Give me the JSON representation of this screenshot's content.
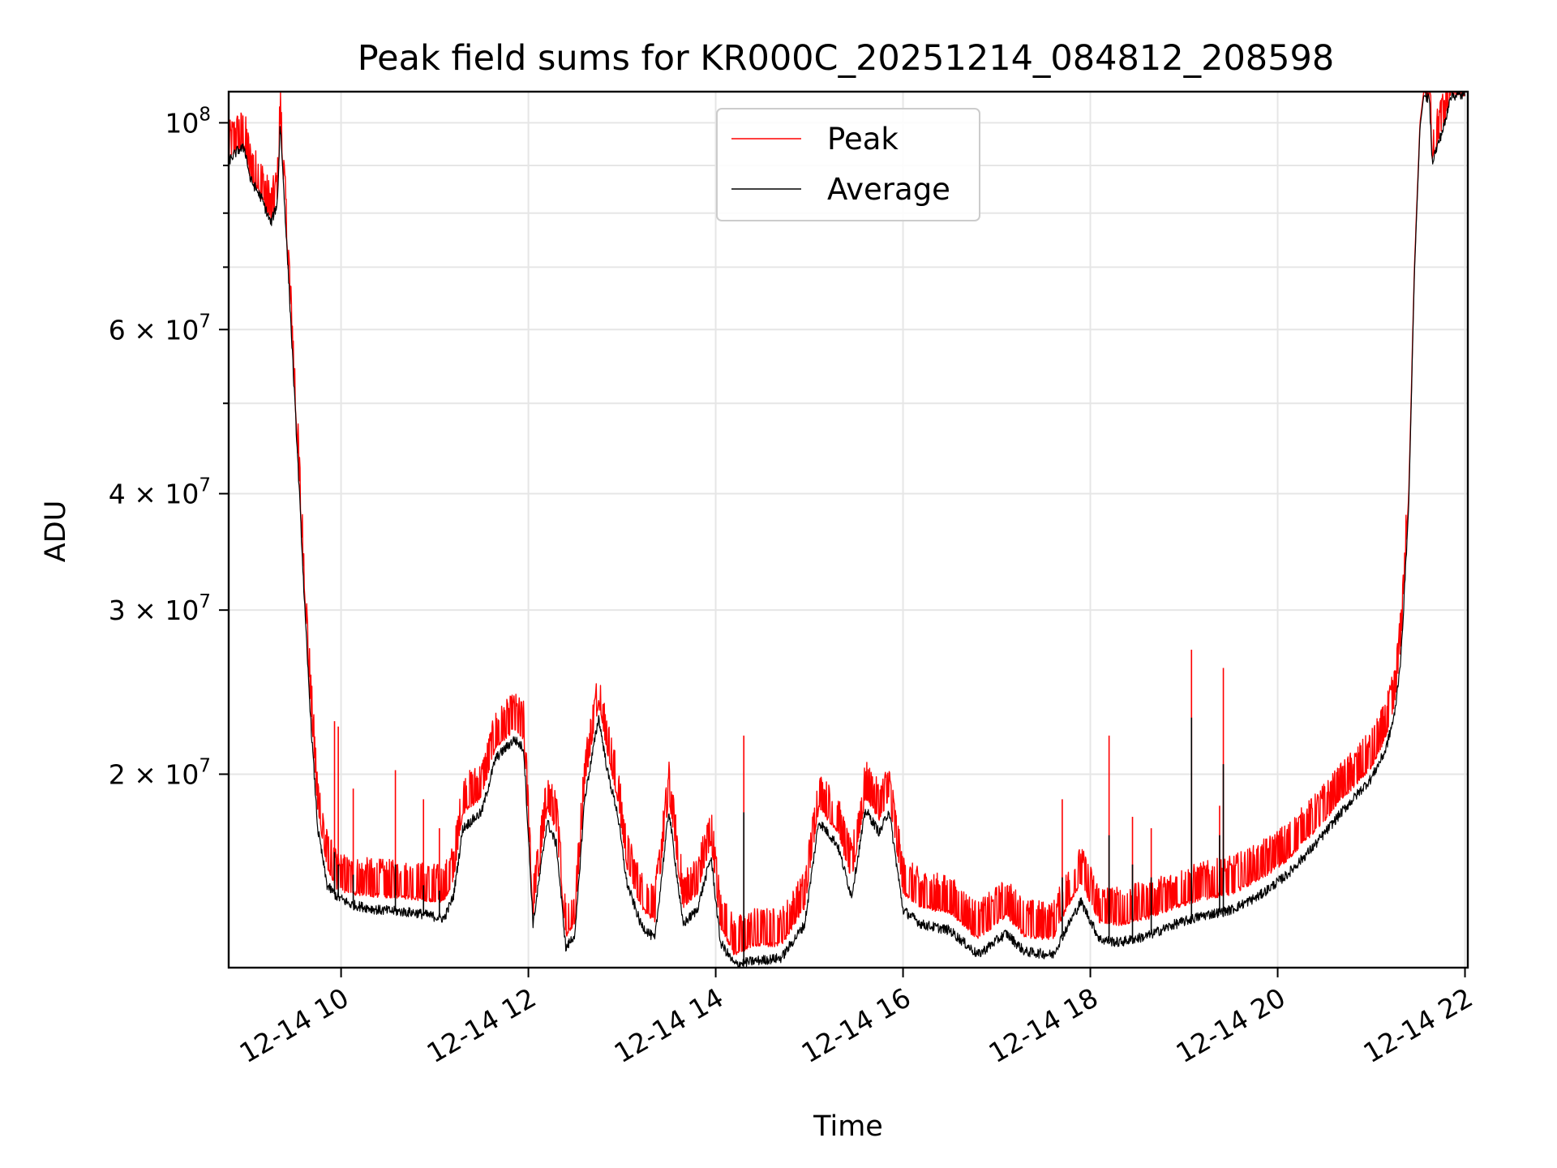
{
  "chart_data": {
    "type": "line",
    "title": "Peak field sums for KR000C_20251214_084812_208598",
    "xlabel": "Time",
    "ylabel": "ADU",
    "y_scale": "log",
    "x_unit": "hours on 2025-12-14",
    "xlim": [
      8.8,
      22.03
    ],
    "ylim": [
      12400000,
      108000000
    ],
    "grid": true,
    "legend_position": "upper center",
    "x_ticks": [
      {
        "value": 10,
        "label": "12-14 10"
      },
      {
        "value": 12,
        "label": "12-14 12"
      },
      {
        "value": 14,
        "label": "12-14 14"
      },
      {
        "value": 16,
        "label": "12-14 16"
      },
      {
        "value": 18,
        "label": "12-14 18"
      },
      {
        "value": 20,
        "label": "12-14 20"
      },
      {
        "value": 22,
        "label": "12-14 22"
      }
    ],
    "y_major_ticks": [
      {
        "value": 100000000,
        "mantissa": "",
        "base": "10",
        "exp": "8"
      },
      {
        "value": 60000000,
        "mantissa": "6 × ",
        "base": "10",
        "exp": "7"
      },
      {
        "value": 40000000,
        "mantissa": "4 × ",
        "base": "10",
        "exp": "7"
      },
      {
        "value": 30000000,
        "mantissa": "3 × ",
        "base": "10",
        "exp": "7"
      },
      {
        "value": 20000000,
        "mantissa": "2 × ",
        "base": "10",
        "exp": "7"
      }
    ],
    "y_minor_ticks": [
      90000000,
      80000000,
      70000000,
      50000000
    ],
    "series": [
      {
        "name": "Peak",
        "color": "#ff0000",
        "points": [
          [
            8.8,
            92000000
          ],
          [
            8.9,
            94500000
          ],
          [
            8.97,
            94800000
          ],
          [
            9.03,
            88000000
          ],
          [
            9.15,
            84000000
          ],
          [
            9.25,
            79000000
          ],
          [
            9.32,
            83000000
          ],
          [
            9.35,
            101500000
          ],
          [
            9.38,
            89000000
          ],
          [
            9.45,
            66000000
          ],
          [
            9.55,
            42000000
          ],
          [
            9.62,
            30000000
          ],
          [
            9.68,
            23500000
          ],
          [
            9.75,
            18500000
          ],
          [
            9.85,
            16000000
          ],
          [
            9.95,
            15200000
          ],
          [
            10.1,
            15000000
          ],
          [
            10.4,
            14900000
          ],
          [
            10.8,
            14800000
          ],
          [
            11.1,
            14700000
          ],
          [
            11.2,
            15500000
          ],
          [
            11.3,
            18300000
          ],
          [
            11.5,
            19000000
          ],
          [
            11.65,
            21500000
          ],
          [
            11.85,
            22500000
          ],
          [
            11.95,
            22000000
          ],
          [
            12.05,
            14200000
          ],
          [
            12.2,
            18500000
          ],
          [
            12.3,
            17500000
          ],
          [
            12.4,
            13500000
          ],
          [
            12.5,
            14000000
          ],
          [
            12.6,
            19500000
          ],
          [
            12.75,
            24000000
          ],
          [
            12.85,
            21000000
          ],
          [
            12.95,
            19000000
          ],
          [
            13.05,
            16000000
          ],
          [
            13.2,
            14500000
          ],
          [
            13.35,
            14000000
          ],
          [
            13.5,
            19000000
          ],
          [
            13.65,
            14500000
          ],
          [
            13.8,
            15000000
          ],
          [
            13.95,
            17000000
          ],
          [
            14.05,
            13800000
          ],
          [
            14.2,
            12900000
          ],
          [
            14.4,
            13200000
          ],
          [
            14.7,
            13200000
          ],
          [
            14.95,
            14500000
          ],
          [
            15.1,
            18500000
          ],
          [
            15.3,
            17500000
          ],
          [
            15.45,
            15500000
          ],
          [
            15.6,
            19000000
          ],
          [
            15.75,
            18000000
          ],
          [
            15.85,
            19000000
          ],
          [
            16.0,
            15000000
          ],
          [
            16.2,
            14500000
          ],
          [
            16.5,
            14300000
          ],
          [
            16.8,
            13400000
          ],
          [
            17.1,
            14200000
          ],
          [
            17.3,
            13500000
          ],
          [
            17.6,
            13400000
          ],
          [
            17.75,
            14500000
          ],
          [
            17.9,
            15400000
          ],
          [
            18.1,
            14000000
          ],
          [
            18.3,
            13900000
          ],
          [
            18.6,
            14100000
          ],
          [
            18.9,
            14500000
          ],
          [
            19.2,
            14800000
          ],
          [
            19.5,
            15000000
          ],
          [
            19.8,
            15500000
          ],
          [
            20.1,
            16300000
          ],
          [
            20.4,
            17500000
          ],
          [
            20.7,
            19000000
          ],
          [
            21.0,
            20500000
          ],
          [
            21.15,
            22000000
          ],
          [
            21.25,
            24000000
          ],
          [
            21.32,
            28000000
          ],
          [
            21.4,
            40000000
          ],
          [
            21.46,
            70000000
          ],
          [
            21.52,
            100000000
          ],
          [
            21.56,
            108000000
          ],
          [
            21.62,
            107000000
          ],
          [
            21.65,
            92000000
          ],
          [
            21.7,
            95000000
          ],
          [
            21.8,
            102000000
          ],
          [
            21.84,
            108000000
          ],
          [
            22.0,
            108000000
          ]
        ]
      },
      {
        "name": "Average",
        "color": "#000000",
        "points": [
          [
            8.8,
            91000000
          ],
          [
            8.9,
            93500000
          ],
          [
            8.97,
            94000000
          ],
          [
            9.03,
            87000000
          ],
          [
            9.15,
            83000000
          ],
          [
            9.25,
            78000000
          ],
          [
            9.32,
            82000000
          ],
          [
            9.35,
            100000000
          ],
          [
            9.38,
            88000000
          ],
          [
            9.45,
            65000000
          ],
          [
            9.55,
            41000000
          ],
          [
            9.62,
            29000000
          ],
          [
            9.68,
            22500000
          ],
          [
            9.75,
            17500000
          ],
          [
            9.85,
            15200000
          ],
          [
            9.95,
            14800000
          ],
          [
            10.1,
            14500000
          ],
          [
            10.4,
            14300000
          ],
          [
            10.8,
            14200000
          ],
          [
            11.1,
            14000000
          ],
          [
            11.2,
            14800000
          ],
          [
            11.3,
            17500000
          ],
          [
            11.5,
            18200000
          ],
          [
            11.65,
            20800000
          ],
          [
            11.85,
            21800000
          ],
          [
            11.95,
            21300000
          ],
          [
            12.05,
            13800000
          ],
          [
            12.2,
            17800000
          ],
          [
            12.3,
            16800000
          ],
          [
            12.4,
            13000000
          ],
          [
            12.5,
            13500000
          ],
          [
            12.6,
            18800000
          ],
          [
            12.75,
            23000000
          ],
          [
            12.85,
            20000000
          ],
          [
            12.95,
            18200000
          ],
          [
            13.05,
            15300000
          ],
          [
            13.2,
            13800000
          ],
          [
            13.35,
            13300000
          ],
          [
            13.5,
            18300000
          ],
          [
            13.65,
            13800000
          ],
          [
            13.8,
            14300000
          ],
          [
            13.95,
            16300000
          ],
          [
            14.05,
            13200000
          ],
          [
            14.2,
            12500000
          ],
          [
            14.4,
            12600000
          ],
          [
            14.7,
            12700000
          ],
          [
            14.95,
            13800000
          ],
          [
            15.1,
            17800000
          ],
          [
            15.3,
            16800000
          ],
          [
            15.45,
            14800000
          ],
          [
            15.6,
            18300000
          ],
          [
            15.75,
            17300000
          ],
          [
            15.85,
            18300000
          ],
          [
            16.0,
            14300000
          ],
          [
            16.2,
            13800000
          ],
          [
            16.5,
            13600000
          ],
          [
            16.8,
            12800000
          ],
          [
            17.1,
            13500000
          ],
          [
            17.3,
            12900000
          ],
          [
            17.6,
            12800000
          ],
          [
            17.75,
            13700000
          ],
          [
            17.9,
            14600000
          ],
          [
            18.1,
            13300000
          ],
          [
            18.3,
            13200000
          ],
          [
            18.6,
            13400000
          ],
          [
            18.9,
            13800000
          ],
          [
            19.2,
            14100000
          ],
          [
            19.5,
            14300000
          ],
          [
            19.8,
            14800000
          ],
          [
            20.1,
            15600000
          ],
          [
            20.4,
            16800000
          ],
          [
            20.7,
            18300000
          ],
          [
            21.0,
            19800000
          ],
          [
            21.15,
            21200000
          ],
          [
            21.25,
            23200000
          ],
          [
            21.32,
            27000000
          ],
          [
            21.4,
            39000000
          ],
          [
            21.46,
            69000000
          ],
          [
            21.52,
            99000000
          ],
          [
            21.56,
            107000000
          ],
          [
            21.62,
            106000000
          ],
          [
            21.65,
            91000000
          ],
          [
            21.7,
            94000000
          ],
          [
            21.8,
            101000000
          ],
          [
            21.84,
            107000000
          ],
          [
            22.0,
            107000000
          ]
        ]
      }
    ],
    "spikes": [
      {
        "x": 9.93,
        "peak": 22800000,
        "avg": 16500000
      },
      {
        "x": 9.97,
        "peak": 22500000,
        "avg": 16000000
      },
      {
        "x": 10.13,
        "peak": 19300000,
        "avg": 15600000
      },
      {
        "x": 10.58,
        "peak": 20200000,
        "avg": 16000000
      },
      {
        "x": 10.88,
        "peak": 18800000,
        "avg": 15200000
      },
      {
        "x": 11.05,
        "peak": 17500000,
        "avg": 15000000
      },
      {
        "x": 14.3,
        "peak": 22000000,
        "avg": 18200000
      },
      {
        "x": 17.7,
        "peak": 18800000,
        "avg": 15500000
      },
      {
        "x": 18.2,
        "peak": 22000000,
        "avg": 17200000
      },
      {
        "x": 18.45,
        "peak": 18000000,
        "avg": 16000000
      },
      {
        "x": 18.65,
        "peak": 17500000,
        "avg": 15500000
      },
      {
        "x": 19.08,
        "peak": 27200000,
        "avg": 23000000
      },
      {
        "x": 19.38,
        "peak": 18500000,
        "avg": 17200000
      },
      {
        "x": 19.42,
        "peak": 26000000,
        "avg": 20500000
      }
    ]
  },
  "legend": {
    "peak_label": "Peak",
    "average_label": "Average"
  }
}
